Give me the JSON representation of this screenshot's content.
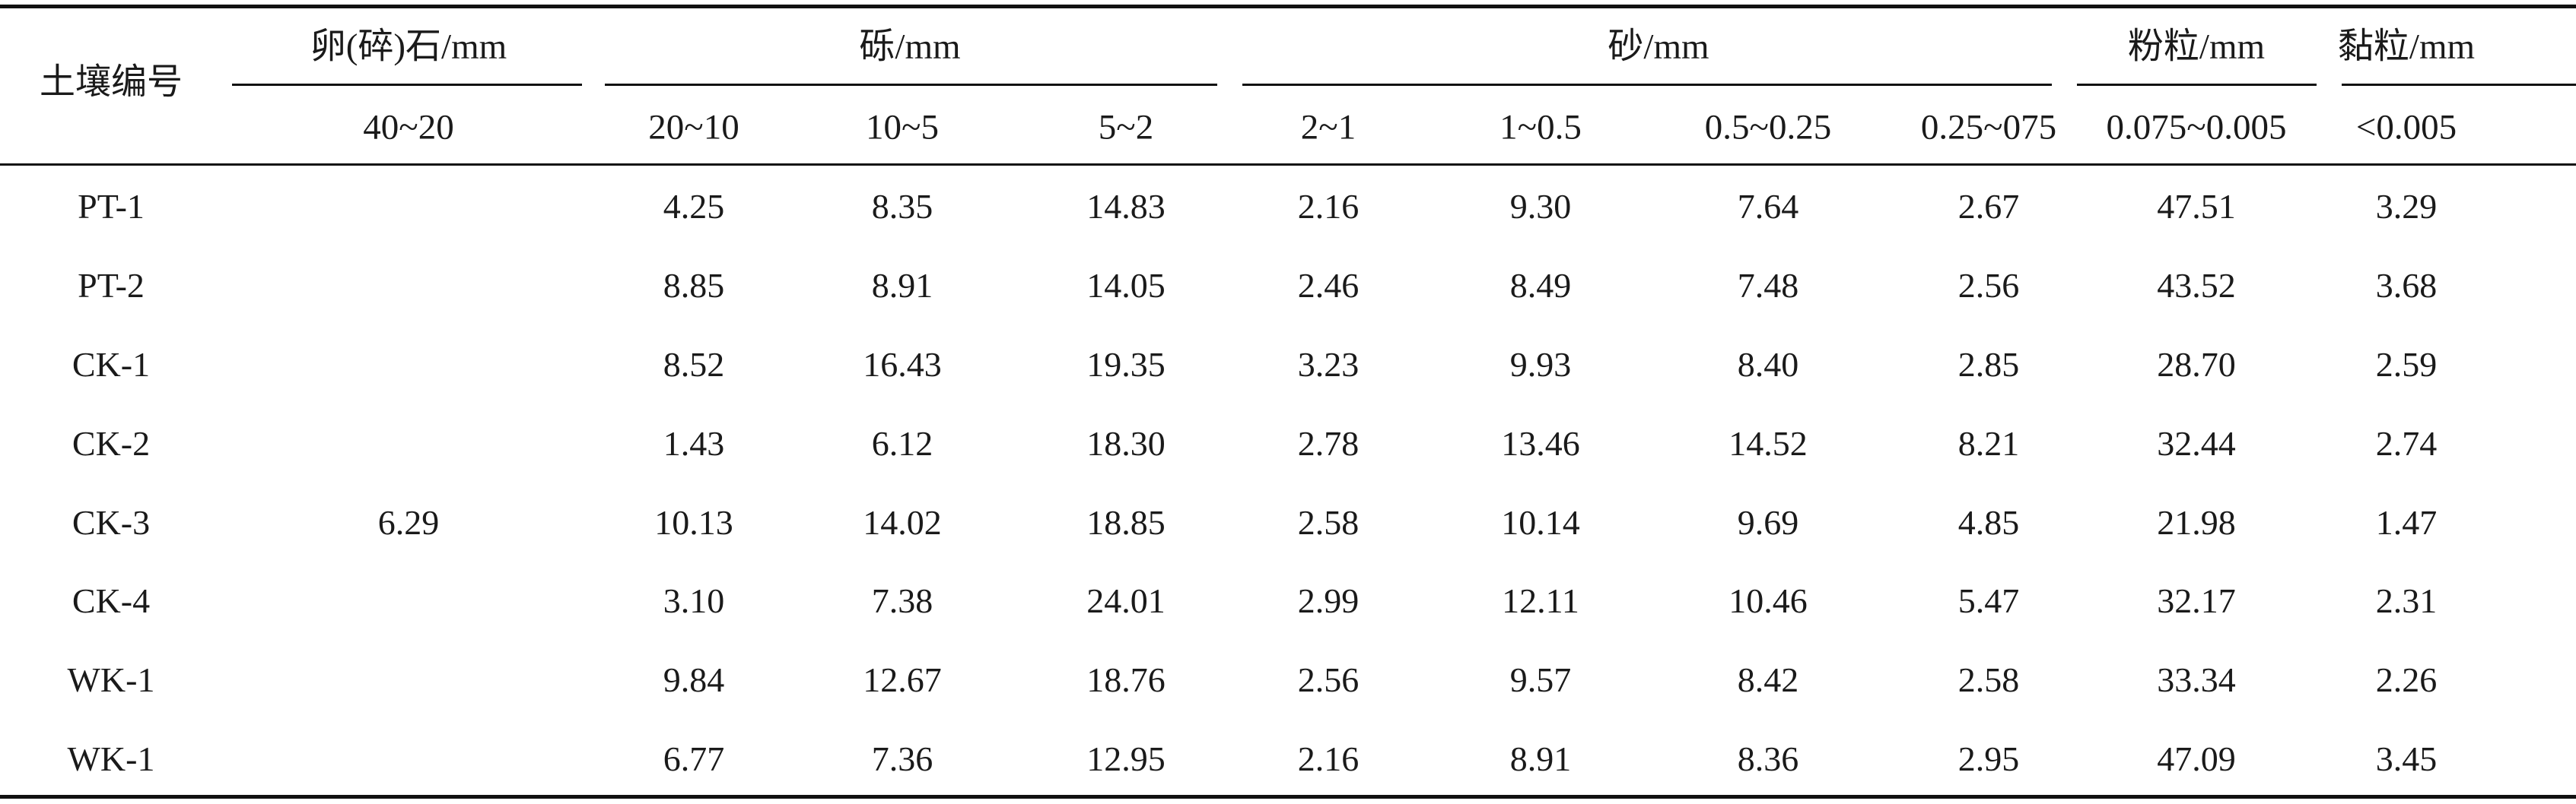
{
  "header": {
    "row_label": "土壤编号",
    "groups": [
      "卵(碎)石/mm",
      "砾/mm",
      "砂/mm",
      "粉粒/mm",
      "黏粒/mm"
    ],
    "ranges": [
      "40~20",
      "20~10",
      "10~5",
      "5~2",
      "2~1",
      "1~0.5",
      "0.5~0.25",
      "0.25~075",
      "0.075~0.005",
      "<0.005"
    ]
  },
  "merged_cell": "6.29",
  "rows": [
    {
      "id": "PT-1",
      "values": [
        "4.25",
        "8.35",
        "14.83",
        "2.16",
        "9.30",
        "7.64",
        "2.67",
        "47.51",
        "3.29"
      ]
    },
    {
      "id": "PT-2",
      "values": [
        "8.85",
        "8.91",
        "14.05",
        "2.46",
        "8.49",
        "7.48",
        "2.56",
        "43.52",
        "3.68"
      ]
    },
    {
      "id": "CK-1",
      "values": [
        "8.52",
        "16.43",
        "19.35",
        "3.23",
        "9.93",
        "8.40",
        "2.85",
        "28.70",
        "2.59"
      ]
    },
    {
      "id": "CK-2",
      "values": [
        "1.43",
        "6.12",
        "18.30",
        "2.78",
        "13.46",
        "14.52",
        "8.21",
        "32.44",
        "2.74"
      ]
    },
    {
      "id": "CK-3",
      "values": [
        "10.13",
        "14.02",
        "18.85",
        "2.58",
        "10.14",
        "9.69",
        "4.85",
        "21.98",
        "1.47"
      ]
    },
    {
      "id": "CK-4",
      "values": [
        "3.10",
        "7.38",
        "24.01",
        "2.99",
        "12.11",
        "10.46",
        "5.47",
        "32.17",
        "2.31"
      ]
    },
    {
      "id": "WK-1",
      "values": [
        "9.84",
        "12.67",
        "18.76",
        "2.56",
        "9.57",
        "8.42",
        "2.58",
        "33.34",
        "2.26"
      ]
    },
    {
      "id": "WK-1",
      "values": [
        "6.77",
        "7.36",
        "12.95",
        "2.16",
        "8.91",
        "8.36",
        "2.95",
        "47.09",
        "3.45"
      ]
    }
  ]
}
